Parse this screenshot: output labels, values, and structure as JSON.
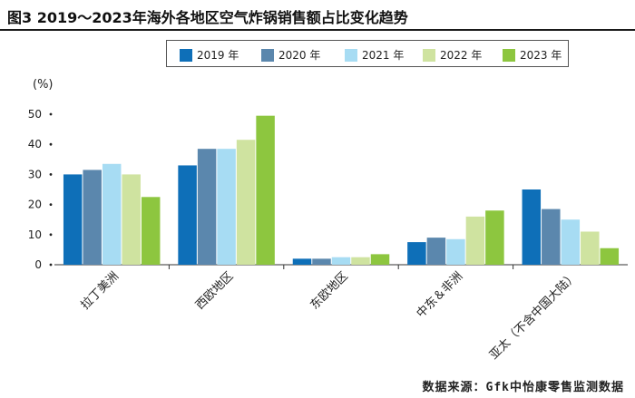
{
  "title": "图3  2019～2023年海外各地区空气炸锅销售额占比变化趋势",
  "source": "数据来源：Gfk中怡康零售监测数据",
  "chart_data": {
    "type": "bar",
    "ylabel": "(%)",
    "ylim": [
      0,
      50
    ],
    "yticks": [
      0,
      10,
      20,
      30,
      40,
      50
    ],
    "categories": [
      "拉丁美洲",
      "西欧地区",
      "东欧地区",
      "中东＆非洲",
      "亚太（不含中国大陆）"
    ],
    "series": [
      {
        "name": "2019 年",
        "color": "#0e6fb8",
        "values": [
          30,
          33,
          2,
          7.5,
          25
        ]
      },
      {
        "name": "2020 年",
        "color": "#5b87ad",
        "values": [
          31.5,
          38.5,
          2,
          9,
          18.5
        ]
      },
      {
        "name": "2021 年",
        "color": "#a7dcf3",
        "values": [
          33.5,
          38.5,
          2.5,
          8.5,
          15
        ]
      },
      {
        "name": "2022 年",
        "color": "#cfe3a0",
        "values": [
          30,
          41.5,
          2.5,
          16,
          11
        ]
      },
      {
        "name": "2023 年",
        "color": "#8dc63f",
        "values": [
          22.5,
          49.5,
          3.5,
          18,
          5.5
        ]
      }
    ]
  }
}
